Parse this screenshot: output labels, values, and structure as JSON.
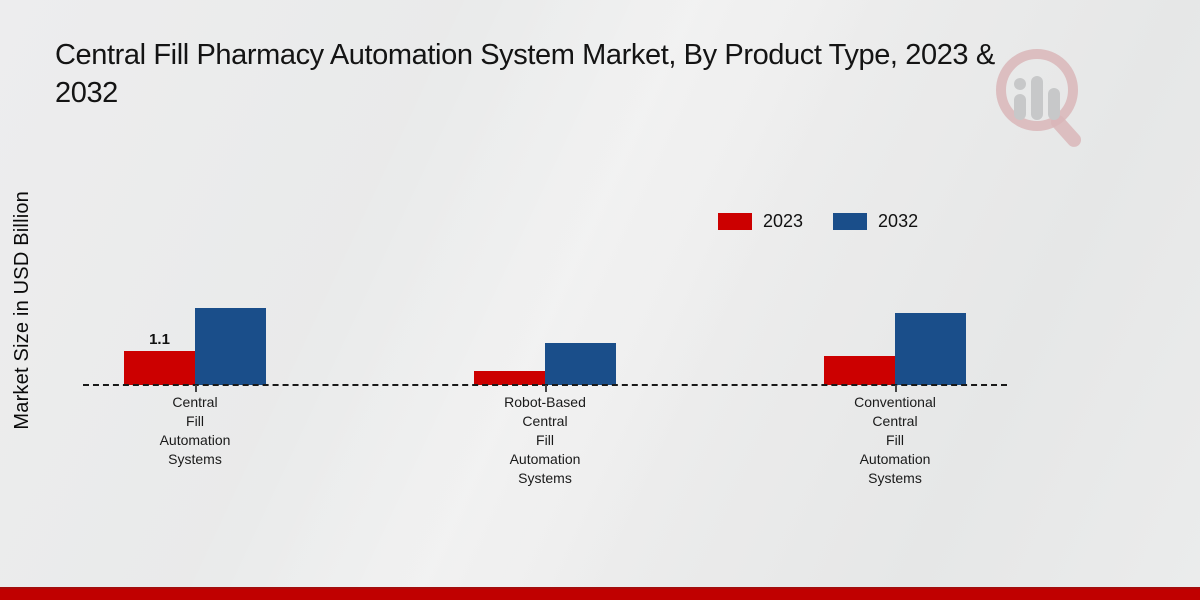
{
  "header": {
    "title_lines": [
      "Central Fill Pharmacy Automation System Market, By Product Type, 2023 &",
      "2032"
    ]
  },
  "watermark": {
    "icon": "magnifier-bar-chart-logo-icon"
  },
  "chart_data": {
    "type": "bar",
    "title": "Central Fill Pharmacy Automation System Market, By Product Type, 2023 & 2032",
    "xlabel": "",
    "ylabel": "Market Size in USD Billion",
    "categories": [
      "Central Fill Automation Systems",
      "Robot-Based Central Fill Automation Systems",
      "Conventional Central Fill Automation Systems"
    ],
    "series": [
      {
        "name": "2023",
        "color": "#cc0000",
        "values": [
          1.1,
          0.45,
          0.95
        ]
      },
      {
        "name": "2032",
        "color": "#1a4e8a",
        "values": [
          2.5,
          1.35,
          2.35
        ]
      }
    ],
    "ylim": [
      0,
      6
    ],
    "grid": false,
    "legend_position": "upper right",
    "baseline_style": "dashed",
    "data_labels": [
      {
        "series_index": 0,
        "category_index": 0,
        "label": "1.1"
      }
    ]
  },
  "colors": {
    "series_2023": "#cc0000",
    "series_2032": "#1a4e8a",
    "footer_bar": "#c00000",
    "background": "#e9eaea"
  }
}
